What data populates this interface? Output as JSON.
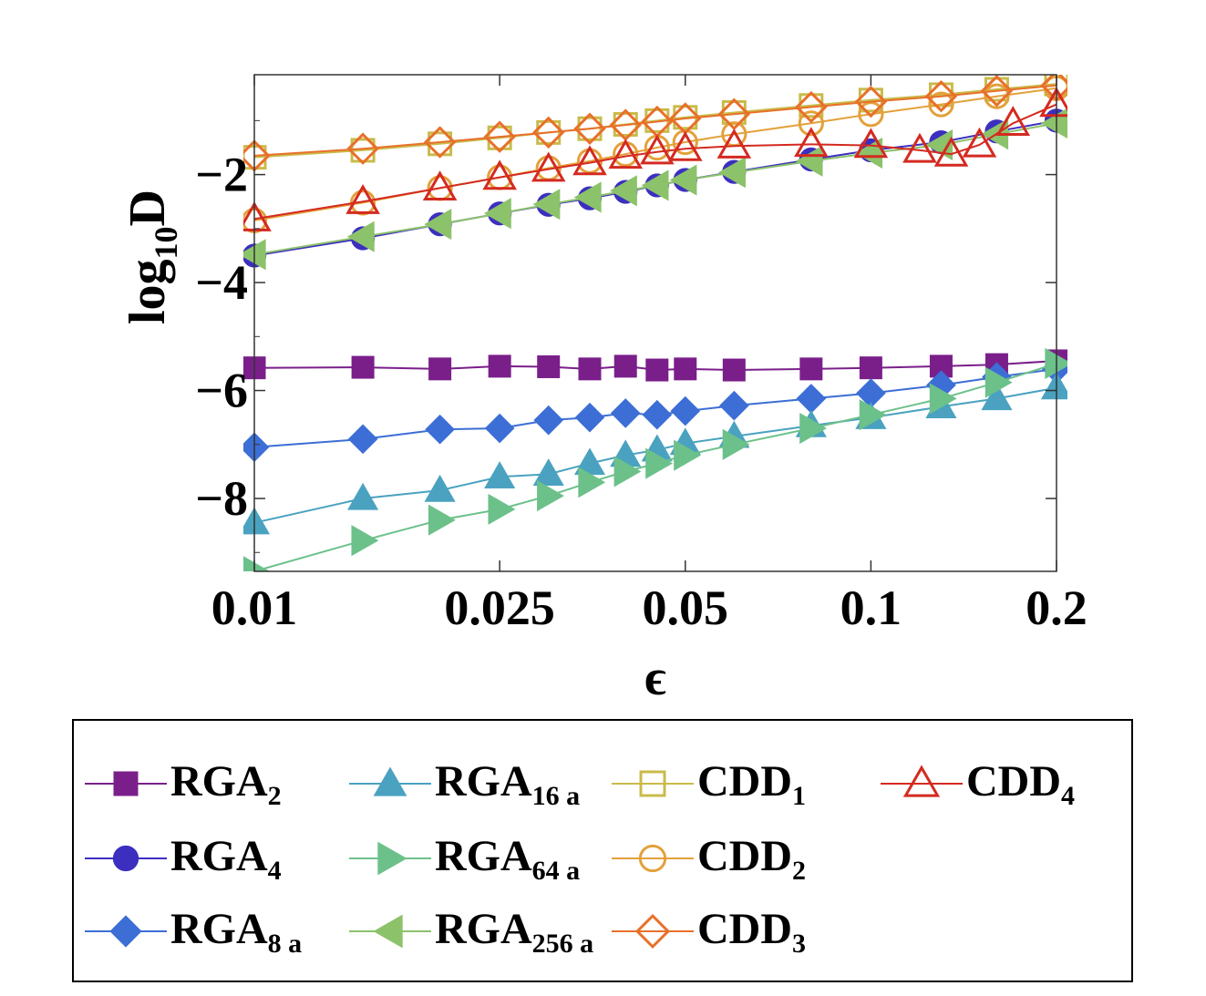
{
  "chart_data": {
    "type": "line",
    "title": "",
    "xlabel": "ϵ",
    "ylabel_main": "log",
    "ylabel_sub": "10",
    "ylabel_tail": "D",
    "xscale": "log",
    "xlim": [
      0.01,
      0.2
    ],
    "ylim": [
      -9.35,
      -0.15
    ],
    "xticks": [
      {
        "value": 0.01,
        "label": "0.01"
      },
      {
        "value": 0.025,
        "label": "0.025"
      },
      {
        "value": 0.05,
        "label": "0.05"
      },
      {
        "value": 0.1,
        "label": "0.1"
      },
      {
        "value": 0.2,
        "label": "0.2"
      }
    ],
    "yticks": [
      {
        "value": -2,
        "label": "−2"
      },
      {
        "value": -4,
        "label": "−4"
      },
      {
        "value": -6,
        "label": "−6"
      },
      {
        "value": -8,
        "label": "−8"
      }
    ],
    "legend_position": "below",
    "series": [
      {
        "name": "RGA",
        "sub": "2",
        "color": "#7a1f8a",
        "marker": "square",
        "filled": true,
        "points": [
          [
            0.01,
            -5.58
          ],
          [
            0.015,
            -5.57
          ],
          [
            0.02,
            -5.6
          ],
          [
            0.025,
            -5.55
          ],
          [
            0.03,
            -5.56
          ],
          [
            0.035,
            -5.6
          ],
          [
            0.04,
            -5.55
          ],
          [
            0.045,
            -5.62
          ],
          [
            0.05,
            -5.6
          ],
          [
            0.06,
            -5.62
          ],
          [
            0.08,
            -5.6
          ],
          [
            0.1,
            -5.58
          ],
          [
            0.13,
            -5.55
          ],
          [
            0.16,
            -5.52
          ],
          [
            0.2,
            -5.45
          ]
        ]
      },
      {
        "name": "RGA",
        "sub": "4",
        "color": "#3c2fbf",
        "marker": "circle",
        "filled": true,
        "points": [
          [
            0.01,
            -3.5
          ],
          [
            0.015,
            -3.18
          ],
          [
            0.02,
            -2.92
          ],
          [
            0.025,
            -2.72
          ],
          [
            0.03,
            -2.56
          ],
          [
            0.035,
            -2.44
          ],
          [
            0.04,
            -2.32
          ],
          [
            0.045,
            -2.2
          ],
          [
            0.05,
            -2.1
          ],
          [
            0.06,
            -1.95
          ],
          [
            0.08,
            -1.72
          ],
          [
            0.1,
            -1.55
          ],
          [
            0.13,
            -1.4
          ],
          [
            0.16,
            -1.2
          ],
          [
            0.2,
            -1.0
          ]
        ]
      },
      {
        "name": "RGA",
        "sub": "8 a",
        "color": "#3c6ed6",
        "marker": "diamond",
        "filled": true,
        "points": [
          [
            0.01,
            -7.05
          ],
          [
            0.015,
            -6.9
          ],
          [
            0.02,
            -6.72
          ],
          [
            0.025,
            -6.7
          ],
          [
            0.03,
            -6.55
          ],
          [
            0.035,
            -6.5
          ],
          [
            0.04,
            -6.42
          ],
          [
            0.045,
            -6.45
          ],
          [
            0.05,
            -6.38
          ],
          [
            0.06,
            -6.28
          ],
          [
            0.08,
            -6.15
          ],
          [
            0.1,
            -6.05
          ],
          [
            0.13,
            -5.9
          ],
          [
            0.16,
            -5.75
          ],
          [
            0.2,
            -5.6
          ]
        ]
      },
      {
        "name": "RGA",
        "sub": "16 a",
        "color": "#4aa2c0",
        "marker": "triangle-up",
        "filled": true,
        "points": [
          [
            0.01,
            -8.45
          ],
          [
            0.015,
            -8.0
          ],
          [
            0.02,
            -7.85
          ],
          [
            0.025,
            -7.6
          ],
          [
            0.03,
            -7.55
          ],
          [
            0.035,
            -7.35
          ],
          [
            0.04,
            -7.2
          ],
          [
            0.045,
            -7.1
          ],
          [
            0.05,
            -6.98
          ],
          [
            0.06,
            -6.85
          ],
          [
            0.08,
            -6.65
          ],
          [
            0.1,
            -6.5
          ],
          [
            0.13,
            -6.3
          ],
          [
            0.16,
            -6.15
          ],
          [
            0.2,
            -5.95
          ]
        ]
      },
      {
        "name": "RGA",
        "sub": "64 a",
        "color": "#6cc18a",
        "marker": "triangle-right",
        "filled": true,
        "points": [
          [
            0.01,
            -9.35
          ],
          [
            0.015,
            -8.78
          ],
          [
            0.02,
            -8.4
          ],
          [
            0.025,
            -8.2
          ],
          [
            0.03,
            -7.95
          ],
          [
            0.035,
            -7.7
          ],
          [
            0.04,
            -7.5
          ],
          [
            0.045,
            -7.35
          ],
          [
            0.05,
            -7.2
          ],
          [
            0.06,
            -7.0
          ],
          [
            0.08,
            -6.7
          ],
          [
            0.1,
            -6.45
          ],
          [
            0.13,
            -6.15
          ],
          [
            0.16,
            -5.85
          ],
          [
            0.2,
            -5.5
          ]
        ]
      },
      {
        "name": "RGA",
        "sub": "256 a",
        "color": "#8cc26a",
        "marker": "triangle-left",
        "filled": true,
        "points": [
          [
            0.01,
            -3.48
          ],
          [
            0.015,
            -3.15
          ],
          [
            0.02,
            -2.92
          ],
          [
            0.025,
            -2.72
          ],
          [
            0.03,
            -2.55
          ],
          [
            0.035,
            -2.42
          ],
          [
            0.04,
            -2.3
          ],
          [
            0.045,
            -2.2
          ],
          [
            0.05,
            -2.1
          ],
          [
            0.06,
            -1.96
          ],
          [
            0.08,
            -1.75
          ],
          [
            0.1,
            -1.6
          ],
          [
            0.13,
            -1.45
          ],
          [
            0.16,
            -1.25
          ],
          [
            0.2,
            -1.05
          ]
        ]
      },
      {
        "name": "CDD",
        "sub": "1",
        "color": "#c9bb4a",
        "marker": "square",
        "filled": false,
        "points": [
          [
            0.01,
            -1.68
          ],
          [
            0.015,
            -1.55
          ],
          [
            0.02,
            -1.43
          ],
          [
            0.025,
            -1.32
          ],
          [
            0.03,
            -1.22
          ],
          [
            0.035,
            -1.15
          ],
          [
            0.04,
            -1.07
          ],
          [
            0.045,
            -1.0
          ],
          [
            0.05,
            -0.94
          ],
          [
            0.06,
            -0.85
          ],
          [
            0.08,
            -0.72
          ],
          [
            0.1,
            -0.62
          ],
          [
            0.13,
            -0.52
          ],
          [
            0.16,
            -0.42
          ],
          [
            0.2,
            -0.32
          ]
        ]
      },
      {
        "name": "CDD",
        "sub": "2",
        "color": "#e3a13a",
        "marker": "circle",
        "filled": false,
        "points": [
          [
            0.01,
            -2.85
          ],
          [
            0.015,
            -2.52
          ],
          [
            0.02,
            -2.25
          ],
          [
            0.025,
            -2.05
          ],
          [
            0.03,
            -1.88
          ],
          [
            0.035,
            -1.75
          ],
          [
            0.04,
            -1.62
          ],
          [
            0.045,
            -1.5
          ],
          [
            0.05,
            -1.4
          ],
          [
            0.06,
            -1.25
          ],
          [
            0.08,
            -1.05
          ],
          [
            0.1,
            -0.88
          ],
          [
            0.13,
            -0.7
          ],
          [
            0.16,
            -0.55
          ],
          [
            0.2,
            -0.4
          ]
        ]
      },
      {
        "name": "CDD",
        "sub": "3",
        "color": "#e8702a",
        "marker": "diamond",
        "filled": false,
        "points": [
          [
            0.01,
            -1.65
          ],
          [
            0.015,
            -1.52
          ],
          [
            0.02,
            -1.4
          ],
          [
            0.025,
            -1.3
          ],
          [
            0.03,
            -1.22
          ],
          [
            0.035,
            -1.15
          ],
          [
            0.04,
            -1.08
          ],
          [
            0.045,
            -1.02
          ],
          [
            0.05,
            -0.96
          ],
          [
            0.06,
            -0.88
          ],
          [
            0.08,
            -0.75
          ],
          [
            0.1,
            -0.65
          ],
          [
            0.13,
            -0.55
          ],
          [
            0.16,
            -0.45
          ],
          [
            0.2,
            -0.35
          ]
        ]
      },
      {
        "name": "CDD",
        "sub": "4",
        "color": "#d42a20",
        "marker": "triangle-up",
        "filled": false,
        "points": [
          [
            0.01,
            -2.82
          ],
          [
            0.015,
            -2.5
          ],
          [
            0.02,
            -2.25
          ],
          [
            0.025,
            -2.05
          ],
          [
            0.03,
            -1.9
          ],
          [
            0.035,
            -1.78
          ],
          [
            0.04,
            -1.66
          ],
          [
            0.045,
            -1.58
          ],
          [
            0.05,
            -1.52
          ],
          [
            0.06,
            -1.47
          ],
          [
            0.08,
            -1.44
          ],
          [
            0.1,
            -1.46
          ],
          [
            0.12,
            -1.55
          ],
          [
            0.135,
            -1.62
          ],
          [
            0.15,
            -1.45
          ],
          [
            0.17,
            -1.05
          ],
          [
            0.2,
            -0.7
          ]
        ]
      }
    ]
  }
}
